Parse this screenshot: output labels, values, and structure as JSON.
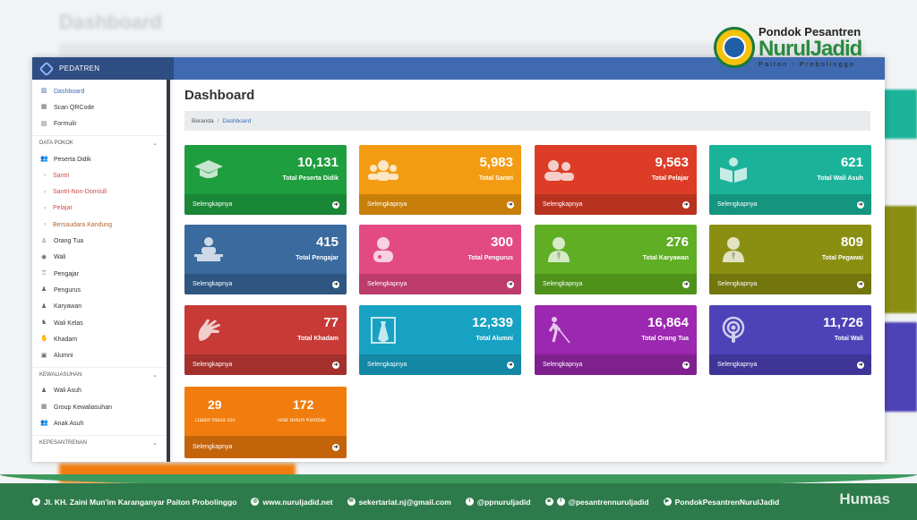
{
  "background": {
    "title": "Dashboard"
  },
  "logo": {
    "line1": "Pondok Pesantren",
    "line2": "NurulJadid",
    "line3": "Paiton - Probolinggo"
  },
  "app": {
    "brand": "PEDATREN"
  },
  "sidebar": {
    "items": [
      {
        "label": "Dashboard",
        "icon": "chart-icon",
        "glyph": "▥",
        "active": true
      },
      {
        "label": "Scan QRCode",
        "icon": "qrcode-icon",
        "glyph": "▦"
      },
      {
        "label": "Formulir",
        "icon": "file-icon",
        "glyph": "▤"
      }
    ],
    "section1": "DATA POKOK",
    "peserta": {
      "label": "Peserta Didik",
      "glyph": "👥"
    },
    "subitems": [
      "Santri",
      "Santri-Non-Domisili",
      "Pelajar",
      "Bersaudara Kandung"
    ],
    "items2": [
      {
        "label": "Orang Tua",
        "glyph": "♙"
      },
      {
        "label": "Wali",
        "glyph": "◉"
      },
      {
        "label": "Pengajar",
        "glyph": "♖"
      },
      {
        "label": "Pengurus",
        "glyph": "♟"
      },
      {
        "label": "Karyawan",
        "glyph": "♟"
      },
      {
        "label": "Wali Kelas",
        "glyph": "♞"
      },
      {
        "label": "Khadam",
        "glyph": "✋"
      },
      {
        "label": "Alumni",
        "glyph": "▣"
      }
    ],
    "section2": "KEWALIASUHAN",
    "items3": [
      {
        "label": "Wali Asuh",
        "glyph": "♟"
      },
      {
        "label": "Group Kewaliasuhan",
        "glyph": "▦"
      },
      {
        "label": "Anak Asuh",
        "glyph": "👥"
      }
    ],
    "section3": "KEPESANTRENAN"
  },
  "content": {
    "title": "Dashboard",
    "breadcrumb": {
      "home": "Beranda",
      "sep": "/",
      "current": "Dashboard"
    }
  },
  "cards": [
    {
      "value": "10,131",
      "label": "Total Peserta Didik",
      "link": "Selengkapnya",
      "color": "#1e9e3e",
      "dark": "#1a8736",
      "icon": "graduation-cap-icon"
    },
    {
      "value": "5,983",
      "label": "Total Santri",
      "link": "Selengkapnya",
      "color": "#f39c12",
      "dark": "#c87f0a",
      "icon": "users-icon"
    },
    {
      "value": "9,563",
      "label": "Total Pelajar",
      "link": "Selengkapnya",
      "color": "#dd3c27",
      "dark": "#b83220",
      "icon": "user-friends-icon"
    },
    {
      "value": "621",
      "label": "Total Wali Asuh",
      "link": "Selengkapnya",
      "color": "#1ab39a",
      "dark": "#159480",
      "icon": "book-reader-icon"
    },
    {
      "value": "415",
      "label": "Total Pengajar",
      "link": "Selengkapnya",
      "color": "#3a6a9e",
      "dark": "#2e5681",
      "icon": "chalkboard-teacher-icon"
    },
    {
      "value": "300",
      "label": "Total Pengurus",
      "link": "Selengkapnya",
      "color": "#e34a82",
      "dark": "#bd3c6b",
      "icon": "user-md-icon"
    },
    {
      "value": "276",
      "label": "Total Karyawan",
      "link": "Selengkapnya",
      "color": "#5fae24",
      "dark": "#4e921c",
      "icon": "user-tie-icon"
    },
    {
      "value": "809",
      "label": "Total Pegawai",
      "link": "Selengkapnya",
      "color": "#8a8f12",
      "dark": "#72760d",
      "icon": "user-tie-icon"
    },
    {
      "value": "77",
      "label": "Total Khadam",
      "link": "Selengkapnya",
      "color": "#c73a36",
      "dark": "#a3302c",
      "icon": "sign-language-icon"
    },
    {
      "value": "12,339",
      "label": "Total Alumni",
      "link": "Selengkapnya",
      "color": "#17a2c4",
      "dark": "#1387a4",
      "icon": "id-badge-icon"
    },
    {
      "value": "16,864",
      "label": "Total Orang Tua",
      "link": "Selengkapnya",
      "color": "#9c27b0",
      "dark": "#80208f",
      "icon": "blind-icon"
    },
    {
      "value": "11,726",
      "label": "Total Wali",
      "link": "Selengkapnya",
      "color": "#4e42b8",
      "dark": "#3f3596",
      "icon": "podcast-icon"
    }
  ],
  "special_card": {
    "left_value": "29",
    "left_label": "Dalam Masa Izin",
    "right_value": "172",
    "right_label": "Telat Belum Kembali",
    "link": "Selengkapnya",
    "color": "#f07d0d",
    "dark": "#c4640a"
  },
  "footer": {
    "address": "Jl. KH. Zaini Mun'im Karanganyar Paiton Probolinggo",
    "website": "www.nuruljadid.net",
    "email": "sekertariat.nj@gmail.com",
    "twitter": "@ppnuruljadid",
    "instagram": "@pesantrennuruljadid",
    "youtube": "PondokPesantrenNurulJadid",
    "brand": "Humas"
  }
}
